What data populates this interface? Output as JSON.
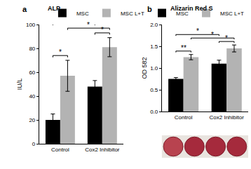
{
  "chart_data": [
    {
      "panel": "a",
      "type": "bar",
      "title": "ALP",
      "y_label": "IU/L",
      "categories": [
        "Control",
        "Cox2 Inhibitor"
      ],
      "series": [
        {
          "name": "MSC",
          "color": "#000000",
          "values": [
            20,
            48
          ],
          "errors": [
            5,
            5
          ]
        },
        {
          "name": "MSC L+T",
          "color": "#b3b3b3",
          "values": [
            57,
            81
          ],
          "errors": [
            13,
            8
          ]
        }
      ],
      "ylim": [
        0,
        100
      ],
      "yticks": [
        0,
        20,
        40,
        60,
        80,
        100
      ],
      "grid": false,
      "legend": "top",
      "significance": [
        {
          "text": "*",
          "from": [
            "Control",
            "MSC"
          ],
          "to": [
            "Control",
            "MSC L+T"
          ]
        },
        {
          "text": "*",
          "from": [
            "Cox2 Inhibitor",
            "MSC"
          ],
          "to": [
            "Cox2 Inhibitor",
            "MSC L+T"
          ]
        },
        {
          "text": "*",
          "from": [
            "Control",
            "MSC"
          ],
          "to": [
            "Cox2 Inhibitor",
            "MSC"
          ]
        },
        {
          "text": "*",
          "from": [
            "Control",
            "MSC L+T"
          ],
          "to": [
            "Cox2 Inhibitor",
            "MSC L+T"
          ]
        }
      ]
    },
    {
      "panel": "b",
      "type": "bar",
      "title": "Alizarin Red S",
      "y_label": "OD 582",
      "categories": [
        "Control",
        "Cox2 Inhibitor"
      ],
      "series": [
        {
          "name": "MSC",
          "color": "#000000",
          "values": [
            0.75,
            1.1
          ],
          "errors": [
            0.03,
            0.08
          ]
        },
        {
          "name": "MSC L+T",
          "color": "#b3b3b3",
          "values": [
            1.25,
            1.45
          ],
          "errors": [
            0.06,
            0.08
          ]
        }
      ],
      "ylim": [
        0,
        2.0
      ],
      "yticks": [
        {
          "value": 0,
          "label": "0.0"
        },
        0.5,
        {
          "value": 1,
          "label": "1.0"
        },
        1.5,
        {
          "value": 2,
          "label": "2.0"
        }
      ],
      "grid": false,
      "legend": "top",
      "significance": [
        {
          "text": "**",
          "from": [
            "Control",
            "MSC"
          ],
          "to": [
            "Control",
            "MSC L+T"
          ]
        },
        {
          "text": "*",
          "from": [
            "Cox2 Inhibitor",
            "MSC"
          ],
          "to": [
            "Cox2 Inhibitor",
            "MSC L+T"
          ]
        },
        {
          "text": "*",
          "from": [
            "Control",
            "MSC"
          ],
          "to": [
            "Cox2 Inhibitor",
            "MSC"
          ]
        },
        {
          "text": "*",
          "from": [
            "Control",
            "MSC L+T"
          ],
          "to": [
            "Cox2 Inhibitor",
            "MSC L+T"
          ]
        }
      ]
    }
  ]
}
